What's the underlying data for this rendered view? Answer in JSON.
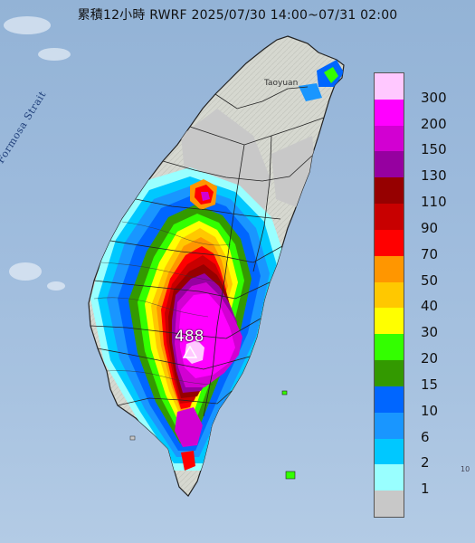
{
  "title": "累積12小時 RWRF 2025/07/30 14:00~07/31 02:00",
  "strait_label": "Formosa Strait",
  "city_label": "Taoyuan",
  "max_value": "488",
  "edge_label": "10",
  "legend": {
    "labels": [
      "300",
      "200",
      "150",
      "130",
      "110",
      "90",
      "70",
      "50",
      "40",
      "30",
      "20",
      "15",
      "10",
      "6",
      "2",
      "1"
    ],
    "colors": [
      "#ffc8ff",
      "#ff00ff",
      "#d200d2",
      "#9600a0",
      "#960000",
      "#c80000",
      "#ff0000",
      "#ff9600",
      "#ffc800",
      "#ffff00",
      "#33ff00",
      "#339900",
      "#0066ff",
      "#1996ff",
      "#00c8ff",
      "#99ffff",
      "#c8c8c8"
    ]
  },
  "colors": {
    "sea": "#9cbadc",
    "land_no_rain": "#c8c8c8",
    "land_base": "#d9d9d2"
  }
}
